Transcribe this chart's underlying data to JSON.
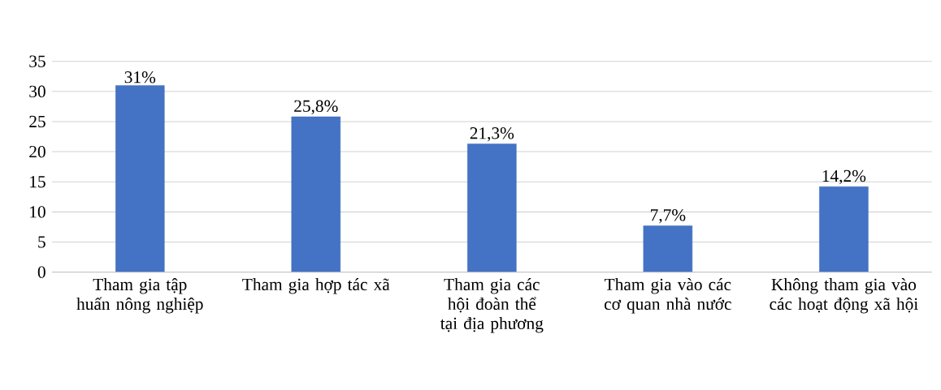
{
  "chart_data": {
    "type": "bar",
    "categories": [
      "Tham gia tập huấn nông nghiệp",
      "Tham gia hợp tác xã",
      "Tham gia các hội đoàn thể tại địa phương",
      "Tham gia vào các cơ quan nhà nước",
      "Không tham gia vào các hoạt động xã hội"
    ],
    "values": [
      31,
      25.8,
      21.3,
      7.7,
      14.2
    ],
    "value_labels": [
      "31%",
      "25,8%",
      "21,3%",
      "7,7%",
      "14,2%"
    ],
    "color": "#4472c4",
    "ylim": [
      0,
      35
    ],
    "yticks": [
      0,
      5,
      10,
      15,
      20,
      25,
      30,
      35
    ],
    "grid": "y"
  }
}
